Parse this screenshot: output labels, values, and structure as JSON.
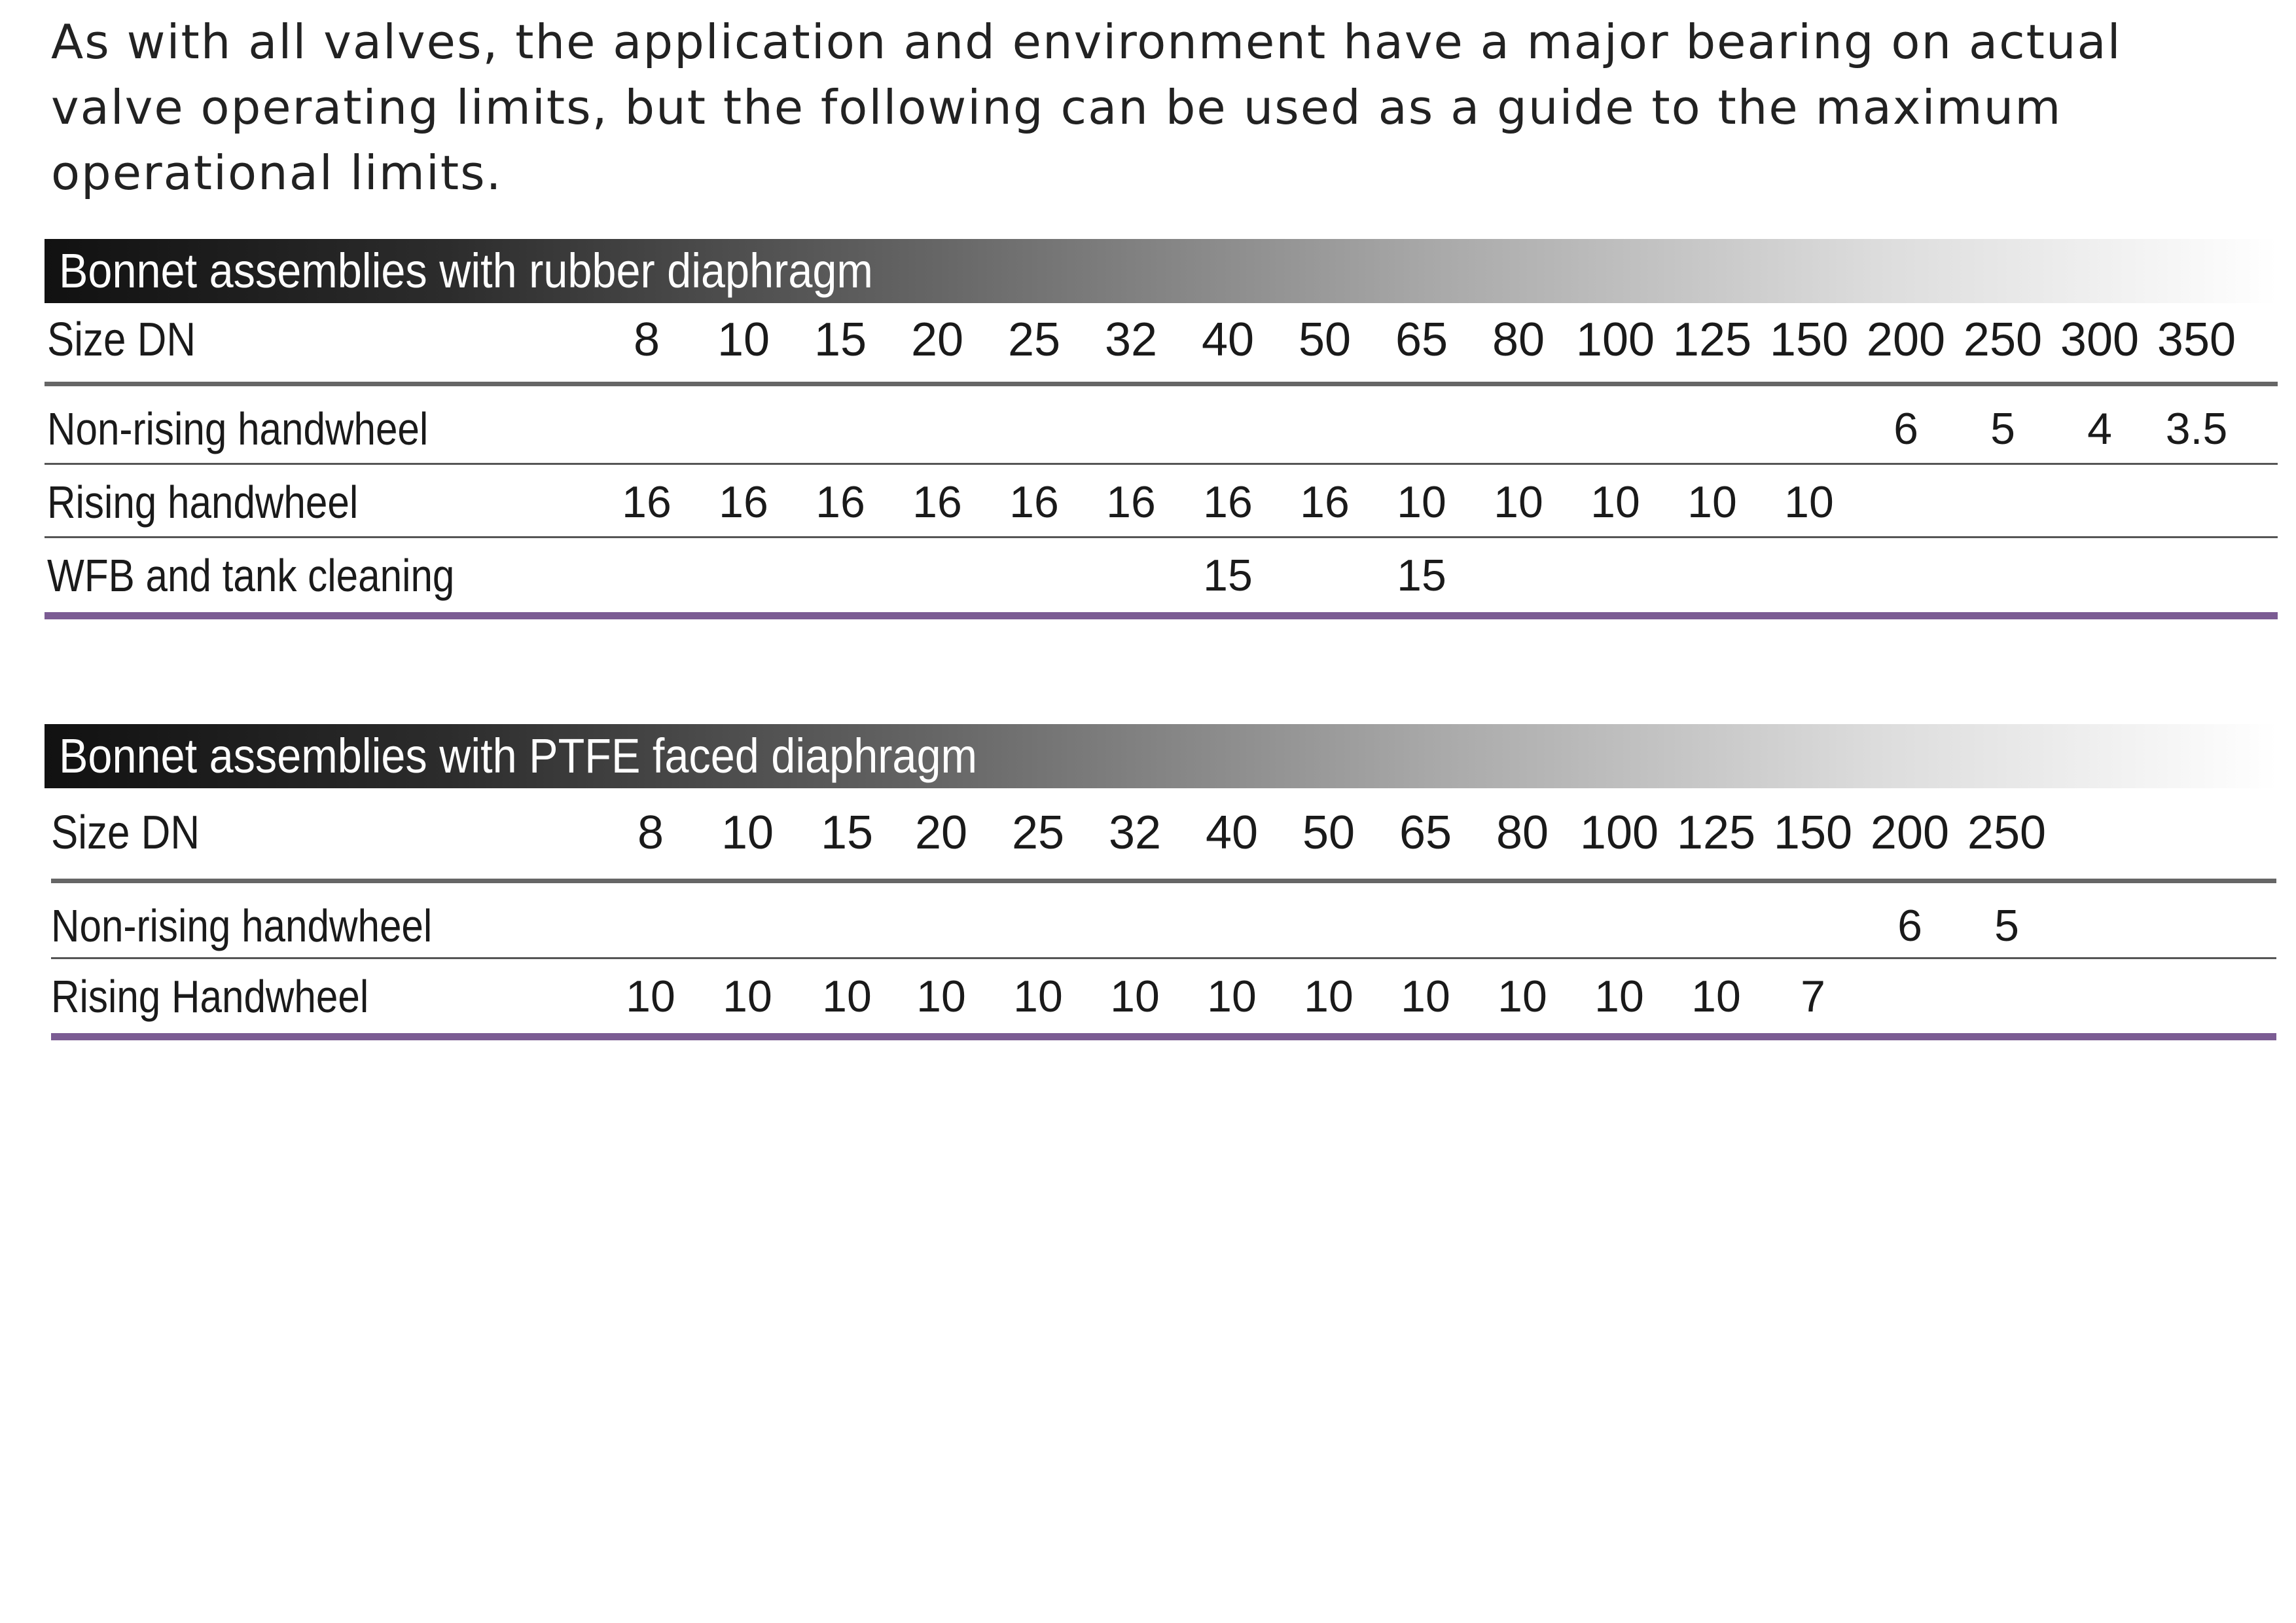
{
  "intro": "As with all valves, the application and environment have a major bearing on actual valve operating limits, but the following can be used as a guide to the maximum operational limits.",
  "tables": [
    {
      "title": "Bonnet assemblies with rubber diaphragm",
      "size_label": "Size DN",
      "sizes": [
        "8",
        "10",
        "15",
        "20",
        "25",
        "32",
        "40",
        "50",
        "65",
        "80",
        "100",
        "125",
        "150",
        "200",
        "250",
        "300",
        "350"
      ],
      "rows": [
        {
          "label": "Non-rising handwheel",
          "values": [
            "",
            "",
            "",
            "",
            "",
            "",
            "",
            "",
            "",
            "",
            "",
            "",
            "",
            "6",
            "5",
            "4",
            "3.5"
          ]
        },
        {
          "label": "Rising handwheel",
          "values": [
            "16",
            "16",
            "16",
            "16",
            "16",
            "16",
            "16",
            "16",
            "10",
            "10",
            "10",
            "10",
            "10",
            "",
            "",
            "",
            ""
          ]
        },
        {
          "label": "WFB and tank cleaning",
          "values": [
            "",
            "",
            "",
            "",
            "",
            "",
            "15",
            "",
            "15",
            "",
            "",
            "",
            "",
            "",
            "",
            "",
            ""
          ]
        }
      ]
    },
    {
      "title": "Bonnet assemblies with PTFE faced diaphragm",
      "size_label": "Size DN",
      "sizes": [
        "8",
        "10",
        "15",
        "20",
        "25",
        "32",
        "40",
        "50",
        "65",
        "80",
        "100",
        "125",
        "150",
        "200",
        "250"
      ],
      "rows": [
        {
          "label": "Non-rising handwheel",
          "values": [
            "",
            "",
            "",
            "",
            "",
            "",
            "",
            "",
            "",
            "",
            "",
            "",
            "",
            "6",
            "5"
          ]
        },
        {
          "label": "Rising Handwheel",
          "values": [
            "10",
            "10",
            "10",
            "10",
            "10",
            "10",
            "10",
            "10",
            "10",
            "10",
            "10",
            "10",
            "7",
            "",
            ""
          ]
        }
      ]
    }
  ],
  "colors": {
    "accent_rule": "#7b5c93",
    "header_gradient_start": "#111111",
    "header_gradient_end": "#ffffff"
  }
}
